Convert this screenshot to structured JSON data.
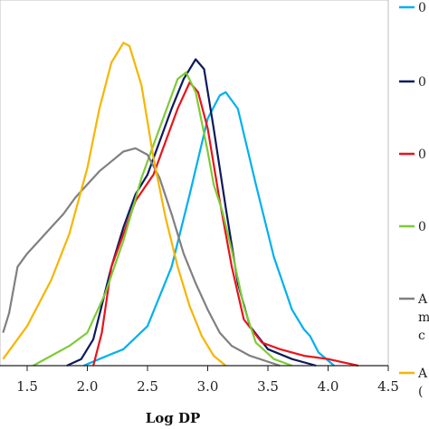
{
  "chart_data": {
    "type": "line",
    "title": "",
    "xlabel": "Log DP",
    "ylabel": "",
    "xlim": [
      1.3,
      4.5
    ],
    "ylim": [
      0,
      1.0
    ],
    "grid": false,
    "x_ticks": [
      "1.5",
      "2.0",
      "2.5",
      "3.0",
      "3.5",
      "4.0",
      "4.5"
    ],
    "legend": {
      "position": "right",
      "entries": [
        {
          "color": "#00b0f0",
          "text": "0"
        },
        {
          "color": "#0d1a5c",
          "text": "0"
        },
        {
          "color": "#e8131b",
          "text": "0"
        },
        {
          "color": "#7ecb36",
          "text": "0"
        },
        {
          "color": "#808080",
          "lines": [
            "A",
            "m",
            "c"
          ]
        },
        {
          "color": "#f7b500",
          "lines": [
            "A",
            "("
          ]
        }
      ]
    },
    "series": [
      {
        "color": "#00b0f0",
        "points": [
          [
            1.97,
            0.0
          ],
          [
            2.1,
            0.02
          ],
          [
            2.3,
            0.05
          ],
          [
            2.5,
            0.12
          ],
          [
            2.7,
            0.3
          ],
          [
            2.85,
            0.52
          ],
          [
            3.0,
            0.75
          ],
          [
            3.1,
            0.82
          ],
          [
            3.15,
            0.83
          ],
          [
            3.25,
            0.78
          ],
          [
            3.4,
            0.55
          ],
          [
            3.55,
            0.33
          ],
          [
            3.7,
            0.17
          ],
          [
            3.8,
            0.11
          ],
          [
            3.85,
            0.09
          ],
          [
            3.92,
            0.04
          ],
          [
            4.05,
            0.0
          ]
        ]
      },
      {
        "color": "#0d1a5c",
        "points": [
          [
            1.83,
            0.0
          ],
          [
            1.95,
            0.02
          ],
          [
            2.05,
            0.08
          ],
          [
            2.2,
            0.3
          ],
          [
            2.3,
            0.42
          ],
          [
            2.4,
            0.52
          ],
          [
            2.5,
            0.58
          ],
          [
            2.6,
            0.68
          ],
          [
            2.7,
            0.78
          ],
          [
            2.8,
            0.87
          ],
          [
            2.9,
            0.93
          ],
          [
            2.97,
            0.9
          ],
          [
            3.05,
            0.72
          ],
          [
            3.15,
            0.48
          ],
          [
            3.25,
            0.25
          ],
          [
            3.35,
            0.12
          ],
          [
            3.5,
            0.05
          ],
          [
            3.7,
            0.02
          ],
          [
            3.9,
            0.0
          ]
        ]
      },
      {
        "color": "#e8131b",
        "points": [
          [
            2.05,
            0.0
          ],
          [
            2.12,
            0.1
          ],
          [
            2.2,
            0.3
          ],
          [
            2.3,
            0.4
          ],
          [
            2.4,
            0.5
          ],
          [
            2.55,
            0.58
          ],
          [
            2.65,
            0.68
          ],
          [
            2.75,
            0.78
          ],
          [
            2.85,
            0.86
          ],
          [
            2.92,
            0.83
          ],
          [
            3.0,
            0.72
          ],
          [
            3.1,
            0.5
          ],
          [
            3.2,
            0.3
          ],
          [
            3.3,
            0.14
          ],
          [
            3.45,
            0.07
          ],
          [
            3.6,
            0.05
          ],
          [
            3.8,
            0.03
          ],
          [
            4.0,
            0.02
          ],
          [
            4.25,
            0.0
          ]
        ]
      },
      {
        "color": "#7ecb36",
        "points": [
          [
            1.55,
            0.0
          ],
          [
            1.7,
            0.03
          ],
          [
            1.85,
            0.06
          ],
          [
            2.0,
            0.1
          ],
          [
            2.15,
            0.22
          ],
          [
            2.3,
            0.38
          ],
          [
            2.45,
            0.57
          ],
          [
            2.55,
            0.67
          ],
          [
            2.65,
            0.77
          ],
          [
            2.75,
            0.87
          ],
          [
            2.82,
            0.89
          ],
          [
            2.9,
            0.83
          ],
          [
            3.0,
            0.65
          ],
          [
            3.05,
            0.55
          ],
          [
            3.12,
            0.47
          ],
          [
            3.2,
            0.35
          ],
          [
            3.3,
            0.18
          ],
          [
            3.4,
            0.07
          ],
          [
            3.55,
            0.02
          ],
          [
            3.7,
            0.0
          ]
        ]
      },
      {
        "color": "#808080",
        "points": [
          [
            1.3,
            0.1
          ],
          [
            1.35,
            0.16
          ],
          [
            1.42,
            0.3
          ],
          [
            1.5,
            0.34
          ],
          [
            1.6,
            0.38
          ],
          [
            1.7,
            0.42
          ],
          [
            1.8,
            0.46
          ],
          [
            1.9,
            0.51
          ],
          [
            2.0,
            0.55
          ],
          [
            2.1,
            0.59
          ],
          [
            2.2,
            0.62
          ],
          [
            2.3,
            0.65
          ],
          [
            2.4,
            0.66
          ],
          [
            2.5,
            0.64
          ],
          [
            2.6,
            0.57
          ],
          [
            2.7,
            0.46
          ],
          [
            2.8,
            0.34
          ],
          [
            2.9,
            0.25
          ],
          [
            3.0,
            0.17
          ],
          [
            3.1,
            0.1
          ],
          [
            3.2,
            0.06
          ],
          [
            3.35,
            0.03
          ],
          [
            3.6,
            0.0
          ]
        ]
      },
      {
        "color": "#f7b500",
        "points": [
          [
            1.3,
            0.02
          ],
          [
            1.5,
            0.12
          ],
          [
            1.7,
            0.26
          ],
          [
            1.85,
            0.4
          ],
          [
            2.0,
            0.6
          ],
          [
            2.1,
            0.78
          ],
          [
            2.2,
            0.92
          ],
          [
            2.3,
            0.98
          ],
          [
            2.35,
            0.97
          ],
          [
            2.45,
            0.85
          ],
          [
            2.55,
            0.63
          ],
          [
            2.65,
            0.45
          ],
          [
            2.75,
            0.3
          ],
          [
            2.85,
            0.18
          ],
          [
            2.95,
            0.09
          ],
          [
            3.05,
            0.03
          ],
          [
            3.15,
            0.0
          ]
        ]
      }
    ]
  }
}
